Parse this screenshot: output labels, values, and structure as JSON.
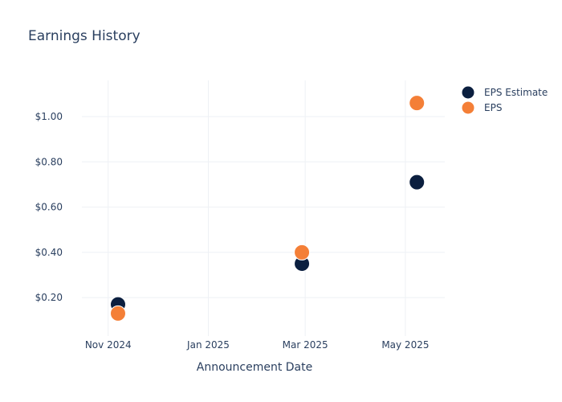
{
  "chart_data": {
    "type": "scatter",
    "title": "Earnings History",
    "xlabel": "Announcement Date",
    "ylabel": "",
    "x_ticks": [
      "Nov 2024",
      "Jan 2025",
      "Mar 2025",
      "May 2025"
    ],
    "y_ticks": [
      "$0.20",
      "$0.40",
      "$0.60",
      "$0.80",
      "$1.00"
    ],
    "y_tick_values": [
      0.2,
      0.4,
      0.6,
      0.8,
      1.0
    ],
    "xlim": [
      "2024-10-16",
      "2025-05-25"
    ],
    "ylim": [
      0.03,
      1.16
    ],
    "grid": true,
    "legend_position": "top-right",
    "series": [
      {
        "name": "EPS Estimate",
        "color": "#0b1f3f",
        "points": [
          {
            "x": "2024-11-07",
            "y": 0.17
          },
          {
            "x": "2025-02-27",
            "y": 0.35
          },
          {
            "x": "2025-05-08",
            "y": 0.71
          }
        ]
      },
      {
        "name": "EPS",
        "color": "#f47f37",
        "points": [
          {
            "x": "2024-11-07",
            "y": 0.13
          },
          {
            "x": "2025-02-27",
            "y": 0.4
          },
          {
            "x": "2025-05-08",
            "y": 1.06
          }
        ]
      }
    ]
  }
}
